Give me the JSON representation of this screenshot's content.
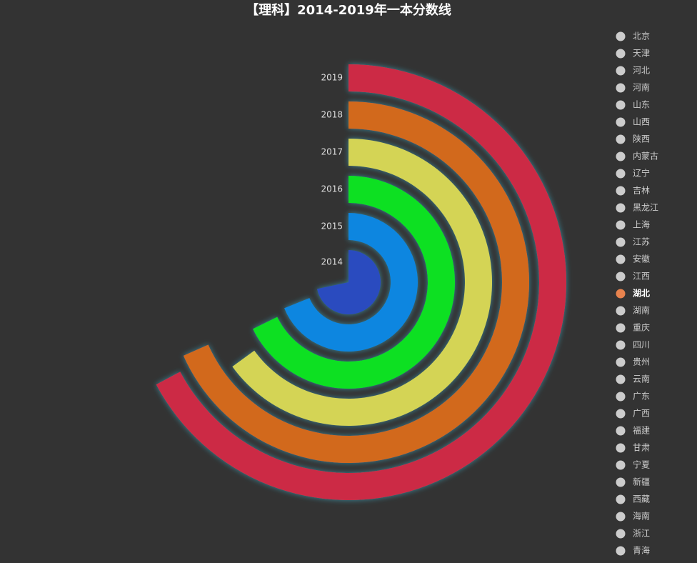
{
  "chart_data": {
    "type": "polar-bar",
    "title": "【理科】2014-2019年一本分数线",
    "categories": [
      "2014",
      "2015",
      "2016",
      "2017",
      "2018",
      "2019"
    ],
    "series": [
      {
        "name": "湖北",
        "values": [
          516,
          496,
          488,
          468,
          492,
          484
        ],
        "colors": [
          "#2a4bbf",
          "#0a86e0",
          "#08e020",
          "#d4d454",
          "#d2691e",
          "#cc2c44"
        ]
      }
    ],
    "anglelim": [
      0,
      720
    ],
    "legend": [
      "北京",
      "天津",
      "河北",
      "河南",
      "山东",
      "山西",
      "陕西",
      "内蒙古",
      "辽宁",
      "吉林",
      "黑龙江",
      "上海",
      "江苏",
      "安徽",
      "江西",
      "湖北",
      "湖南",
      "重庆",
      "四川",
      "贵州",
      "云南",
      "广东",
      "广西",
      "福建",
      "甘肃",
      "宁夏",
      "新疆",
      "西藏",
      "海南",
      "浙江",
      "青海"
    ],
    "legend_position": "right"
  }
}
